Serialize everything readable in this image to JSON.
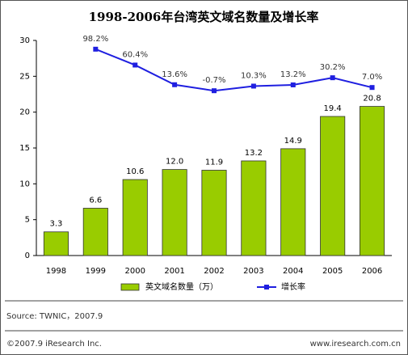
{
  "chart_data": {
    "type": "bar-line",
    "title": "1998-2006年台湾英文域名数量及增长率",
    "categories": [
      "1998",
      "1999",
      "2000",
      "2001",
      "2002",
      "2003",
      "2004",
      "2005",
      "2006"
    ],
    "series": [
      {
        "name": "英文域名数量（万）",
        "type": "bar",
        "color": "#99cc00",
        "values": [
          3.3,
          6.6,
          10.6,
          12.0,
          11.9,
          13.2,
          14.9,
          19.4,
          20.8
        ],
        "value_labels": [
          "3.3",
          "6.6",
          "10.6",
          "12.0",
          "11.9",
          "13.2",
          "14.9",
          "19.4",
          "20.8"
        ]
      },
      {
        "name": "增长率",
        "type": "line",
        "color": "#1f1fe0",
        "axis": "y2",
        "values": [
          null,
          98.2,
          60.4,
          13.6,
          -0.7,
          10.3,
          13.2,
          30.2,
          7.0
        ],
        "value_labels": [
          null,
          "98.2%",
          "60.4%",
          "13.6%",
          "-0.7%",
          "10.3%",
          "13.2%",
          "30.2%",
          "7.0%"
        ]
      }
    ],
    "ylim": [
      0,
      30
    ],
    "yticks": [
      0,
      5,
      10,
      15,
      20,
      25,
      30
    ],
    "y2lim": [
      -393,
      119
    ]
  },
  "source": "Source: TWNIC，2007.9",
  "copyright": "©2007.9 iResearch Inc.",
  "website": "www.iresearch.com.cn"
}
